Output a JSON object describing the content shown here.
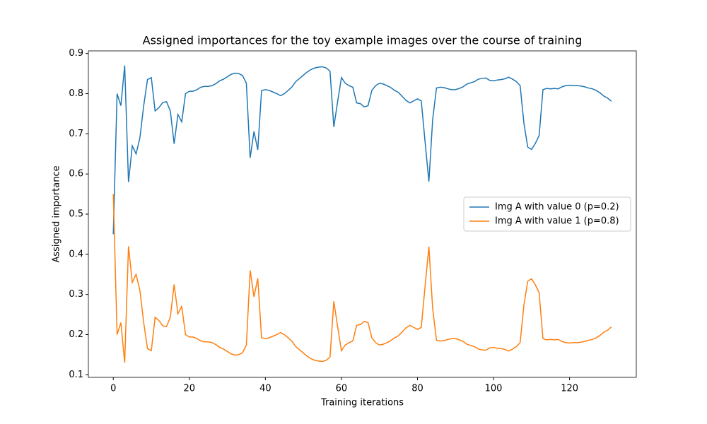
{
  "chart_data": {
    "type": "line",
    "title": "Assigned importances for the toy example images over the course of training",
    "xlabel": "Training iterations",
    "ylabel": "Assigned importance",
    "x": [
      0,
      1,
      2,
      3,
      4,
      5,
      6,
      7,
      8,
      9,
      10,
      11,
      12,
      13,
      14,
      15,
      16,
      17,
      18,
      19,
      20,
      21,
      22,
      23,
      24,
      25,
      26,
      27,
      28,
      29,
      30,
      31,
      32,
      33,
      34,
      35,
      36,
      37,
      38,
      39,
      40,
      41,
      42,
      43,
      44,
      45,
      46,
      47,
      48,
      49,
      50,
      51,
      52,
      53,
      54,
      55,
      56,
      57,
      58,
      59,
      60,
      61,
      62,
      63,
      64,
      65,
      66,
      67,
      68,
      69,
      70,
      71,
      72,
      73,
      74,
      75,
      76,
      77,
      78,
      79,
      80,
      81,
      82,
      83,
      84,
      85,
      86,
      87,
      88,
      89,
      90,
      91,
      92,
      93,
      94,
      95,
      96,
      97,
      98,
      99,
      100,
      101,
      102,
      103,
      104,
      105,
      106,
      107,
      108,
      109,
      110,
      111,
      112,
      113,
      114,
      115,
      116,
      117,
      118,
      119,
      120,
      121,
      122,
      123,
      124,
      125,
      126,
      127,
      128,
      129,
      130,
      131
    ],
    "series": [
      {
        "name": "Img A with value 0 (p=0.2)",
        "color": "#1f77b4",
        "values": [
          0.45,
          0.8,
          0.77,
          0.87,
          0.58,
          0.67,
          0.65,
          0.69,
          0.77,
          0.835,
          0.84,
          0.757,
          0.765,
          0.778,
          0.78,
          0.757,
          0.675,
          0.748,
          0.73,
          0.8,
          0.806,
          0.806,
          0.81,
          0.816,
          0.818,
          0.818,
          0.82,
          0.825,
          0.832,
          0.836,
          0.842,
          0.848,
          0.851,
          0.85,
          0.845,
          0.826,
          0.64,
          0.706,
          0.66,
          0.808,
          0.81,
          0.808,
          0.804,
          0.8,
          0.795,
          0.8,
          0.808,
          0.817,
          0.83,
          0.838,
          0.846,
          0.854,
          0.86,
          0.864,
          0.866,
          0.867,
          0.864,
          0.856,
          0.717,
          0.78,
          0.84,
          0.826,
          0.82,
          0.816,
          0.777,
          0.775,
          0.767,
          0.77,
          0.808,
          0.82,
          0.826,
          0.824,
          0.82,
          0.815,
          0.808,
          0.803,
          0.793,
          0.783,
          0.777,
          0.782,
          0.787,
          0.782,
          0.68,
          0.581,
          0.736,
          0.814,
          0.816,
          0.815,
          0.812,
          0.81,
          0.81,
          0.813,
          0.817,
          0.824,
          0.827,
          0.83,
          0.836,
          0.838,
          0.839,
          0.833,
          0.832,
          0.834,
          0.835,
          0.837,
          0.841,
          0.836,
          0.83,
          0.82,
          0.726,
          0.667,
          0.661,
          0.676,
          0.696,
          0.81,
          0.813,
          0.812,
          0.813,
          0.812,
          0.817,
          0.82,
          0.821,
          0.82,
          0.82,
          0.819,
          0.817,
          0.814,
          0.812,
          0.808,
          0.802,
          0.794,
          0.789,
          0.781
        ]
      },
      {
        "name": "Img A with value 1 (p=0.8)",
        "color": "#ff7f0e",
        "values": [
          0.55,
          0.2,
          0.23,
          0.13,
          0.42,
          0.33,
          0.35,
          0.31,
          0.23,
          0.165,
          0.16,
          0.243,
          0.235,
          0.222,
          0.22,
          0.243,
          0.325,
          0.252,
          0.27,
          0.2,
          0.194,
          0.194,
          0.19,
          0.184,
          0.182,
          0.182,
          0.18,
          0.175,
          0.168,
          0.164,
          0.158,
          0.152,
          0.149,
          0.15,
          0.155,
          0.174,
          0.36,
          0.294,
          0.34,
          0.192,
          0.19,
          0.192,
          0.196,
          0.2,
          0.205,
          0.2,
          0.192,
          0.183,
          0.17,
          0.162,
          0.154,
          0.146,
          0.14,
          0.136,
          0.134,
          0.133,
          0.136,
          0.144,
          0.283,
          0.22,
          0.16,
          0.174,
          0.18,
          0.184,
          0.223,
          0.225,
          0.233,
          0.23,
          0.192,
          0.18,
          0.174,
          0.176,
          0.18,
          0.185,
          0.192,
          0.197,
          0.207,
          0.217,
          0.223,
          0.218,
          0.213,
          0.218,
          0.32,
          0.419,
          0.264,
          0.186,
          0.184,
          0.185,
          0.188,
          0.19,
          0.19,
          0.187,
          0.183,
          0.176,
          0.173,
          0.17,
          0.164,
          0.162,
          0.161,
          0.167,
          0.168,
          0.166,
          0.165,
          0.163,
          0.159,
          0.164,
          0.17,
          0.18,
          0.274,
          0.333,
          0.339,
          0.324,
          0.304,
          0.19,
          0.187,
          0.188,
          0.187,
          0.188,
          0.183,
          0.18,
          0.179,
          0.18,
          0.18,
          0.181,
          0.183,
          0.186,
          0.188,
          0.192,
          0.198,
          0.206,
          0.211,
          0.219
        ]
      }
    ],
    "xlim": [
      -6.55,
      137.55
    ],
    "xticks": [
      0,
      20,
      40,
      60,
      80,
      100,
      120
    ],
    "ylim": [
      0.0935,
      0.9065
    ],
    "yticks": [
      0.1,
      0.2,
      0.3,
      0.4,
      0.5,
      0.6,
      0.7,
      0.8,
      0.9
    ],
    "legend": "center right",
    "grid": false
  }
}
